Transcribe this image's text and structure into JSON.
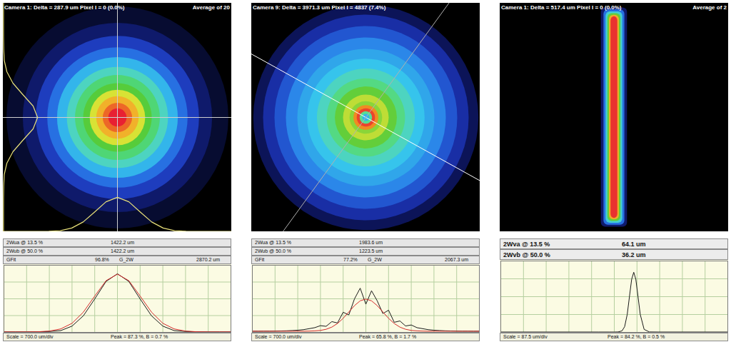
{
  "chart_data": [
    {
      "type": "beam_image",
      "title": "Camera 1: Delta = 287.9 um Pixel I = 0 (0.0%)",
      "subtitle": "Average of 20",
      "xlim": [
        -3500,
        3500
      ],
      "ylim": [
        -3500,
        3500
      ],
      "tick_labels": false,
      "rings": [
        {
          "radius": 3400,
          "level": 1.5
        },
        {
          "radius": 2900,
          "level": 4
        },
        {
          "radius": 2500,
          "level": 9
        },
        {
          "radius": 2150,
          "level": 15
        },
        {
          "radius": 1850,
          "level": 24
        },
        {
          "radius": 1550,
          "level": 33
        },
        {
          "radius": 1300,
          "level": 44
        },
        {
          "radius": 1050,
          "level": 54
        },
        {
          "radius": 850,
          "level": 64
        },
        {
          "radius": 650,
          "level": 74
        },
        {
          "radius": 450,
          "level": 84
        },
        {
          "radius": 280,
          "level": 92
        }
      ],
      "profile_x": [
        -3500,
        -3150,
        -2800,
        -2450,
        -2100,
        -1750,
        -1400,
        -1050,
        -700,
        -350,
        0,
        350,
        700,
        1050,
        1400,
        1750,
        2100,
        2450,
        2800,
        3150,
        3500
      ],
      "x_profile": [
        0.7,
        0.7,
        0.7,
        0.8,
        1.3,
        2.6,
        9.3,
        24.7,
        49.8,
        75.9,
        87.3,
        75.9,
        49.8,
        24.7,
        9.3,
        2.6,
        1.3,
        0.8,
        0.7,
        0.7,
        0.7
      ],
      "y_profile": [
        0.7,
        0.7,
        0.7,
        0.8,
        1.3,
        2.6,
        9.3,
        24.7,
        49.8,
        75.9,
        87.3,
        75.9,
        49.8,
        24.7,
        9.3,
        2.6,
        1.3,
        0.8,
        0.7,
        0.7,
        0.7
      ]
    },
    {
      "type": "line",
      "header": [
        [
          "2Wua @ 13.5 %",
          "1422.2 um"
        ],
        [
          "2Wub @ 50.0 %",
          "1422.2 um"
        ],
        [
          "GFit",
          "96.8%",
          "G_2W",
          "2870.2 um"
        ]
      ],
      "footer": [
        "Scale = 700.0 um/div",
        "Peak = 87.3 %, B = 0.7 %"
      ],
      "x": [
        -3500,
        -3150,
        -2800,
        -2450,
        -2100,
        -1750,
        -1400,
        -1050,
        -700,
        -350,
        0,
        350,
        700,
        1050,
        1400,
        1750,
        2100,
        2450,
        2800,
        3150,
        3500
      ],
      "series": [
        {
          "color": "#1a1a1a",
          "values": [
            0.7,
            0.7,
            0.7,
            0.8,
            1.3,
            2.6,
            9.3,
            24.7,
            49.8,
            75.9,
            87.3,
            75.9,
            49.8,
            24.7,
            9.3,
            2.6,
            1.3,
            0.8,
            0.7,
            0.7,
            0.7
          ]
        },
        {
          "color": "#d42a2a",
          "values": [
            0.7,
            0.7,
            0.7,
            0.9,
            1.9,
            5.1,
            13.5,
            30.2,
            54.1,
            77.1,
            86.7,
            77.1,
            54.1,
            30.2,
            13.5,
            5.1,
            1.9,
            0.9,
            0.7,
            0.7,
            0.7
          ]
        }
      ],
      "xlim": [
        -3500,
        3500
      ],
      "xticks": [
        -3500,
        -2800,
        -2100,
        -1400,
        -700,
        0,
        700,
        1400,
        2100,
        2800,
        3500
      ],
      "ylim": [
        0,
        100
      ],
      "yticks": [
        0,
        25,
        50,
        75,
        100
      ],
      "grid": true,
      "tick_labels": false
    },
    {
      "type": "beam_image",
      "title": "Camera 9: Delta = 3971.3 um Pixel I = 4837 (7.4%)",
      "xlim": [
        -3500,
        3500
      ],
      "ylim": [
        -3500,
        3500
      ],
      "tick_labels": false,
      "rings": [
        {
          "radius": 3450,
          "level": 3
        },
        {
          "radius": 3150,
          "level": 7
        },
        {
          "radius": 2800,
          "level": 12
        },
        {
          "radius": 2450,
          "level": 18
        },
        {
          "radius": 2100,
          "level": 22
        },
        {
          "radius": 1800,
          "level": 26
        },
        {
          "radius": 1500,
          "level": 33
        },
        {
          "radius": 1200,
          "level": 42
        },
        {
          "radius": 950,
          "level": 55
        },
        {
          "radius": 700,
          "level": 62
        },
        {
          "radius": 500,
          "level": 58
        },
        {
          "radius": 380,
          "level": 80
        },
        {
          "radius": 280,
          "level": 88
        },
        {
          "radius": 190,
          "level": 40
        },
        {
          "radius": 110,
          "level": 24
        }
      ]
    },
    {
      "type": "line",
      "header": [
        [
          "2Wua @ 13.5 %",
          "1983.6 um"
        ],
        [
          "2Wub @ 50.0 %",
          "1223.5 um"
        ],
        [
          "GFit",
          "77.2%",
          "G_2W",
          "2067.3 um"
        ]
      ],
      "footer": [
        "Scale = 700.0 um/div",
        "Peak = 65.8 %, B = 1.7 %"
      ],
      "x": [
        -3500,
        -3325,
        -3150,
        -2975,
        -2800,
        -2625,
        -2450,
        -2275,
        -2100,
        -1925,
        -1750,
        -1575,
        -1400,
        -1225,
        -1050,
        -875,
        -700,
        -525,
        -350,
        -175,
        0,
        175,
        350,
        525,
        700,
        875,
        1050,
        1225,
        1400,
        1575,
        1750,
        1925,
        2100,
        2275,
        2450,
        2625,
        2800,
        2975,
        3150,
        3325,
        3500
      ],
      "series": [
        {
          "color": "#1a1a1a",
          "values": [
            1.7,
            1.7,
            1.8,
            1.8,
            1.9,
            2.1,
            2.3,
            2.7,
            3.2,
            4.0,
            5.5,
            7,
            10,
            9,
            16,
            14,
            30,
            26,
            50,
            65.8,
            42,
            62,
            47,
            28,
            33,
            15,
            17,
            9.5,
            11,
            7,
            5.5,
            4,
            3.2,
            2.7,
            2.3,
            2.1,
            1.9,
            1.8,
            1.8,
            1.7,
            1.7
          ]
        },
        {
          "color": "#d42a2a",
          "values": [
            1.7,
            1.7,
            1.7,
            1.7,
            1.7,
            1.7,
            1.7,
            1.7,
            1.7,
            1.7,
            1.9,
            2.2,
            2.9,
            4.6,
            7.8,
            13.2,
            20.9,
            30.4,
            39.9,
            47.0,
            49.7,
            47.0,
            39.9,
            30.4,
            20.9,
            13.2,
            7.8,
            4.6,
            2.9,
            2.2,
            1.9,
            1.7,
            1.7,
            1.7,
            1.7,
            1.7,
            1.7,
            1.7,
            1.7,
            1.7,
            1.7
          ]
        }
      ],
      "xlim": [
        -3500,
        3500
      ],
      "xticks": [
        -3500,
        -2800,
        -2100,
        -1400,
        -700,
        0,
        700,
        1400,
        2100,
        2800,
        3500
      ],
      "ylim": [
        0,
        100
      ],
      "yticks": [
        0,
        25,
        50,
        75,
        100
      ],
      "grid": true,
      "tick_labels": false
    },
    {
      "type": "beam_image",
      "title": "Camera 1: Delta = 517.4 um Pixel I = 0 (0.0%)",
      "subtitle": "Average of 2",
      "xlim": [
        -437.5,
        437.5
      ],
      "ylim": [
        -437.5,
        437.5
      ],
      "tick_labels": false,
      "rings": [
        {
          "half_width": 50,
          "half_height": 420,
          "level": 4
        },
        {
          "half_width": 40,
          "half_height": 412,
          "level": 15
        },
        {
          "half_width": 32,
          "half_height": 405,
          "level": 30
        },
        {
          "half_width": 25,
          "half_height": 398,
          "level": 55
        },
        {
          "half_width": 19,
          "half_height": 392,
          "level": 75
        },
        {
          "half_width": 13,
          "half_height": 386,
          "level": 90
        }
      ]
    },
    {
      "type": "line",
      "header": [
        [
          "2Wva @ 13.5 %",
          "64.1 um"
        ],
        [
          "2Wvb @ 50.0 %",
          "36.2 um"
        ]
      ],
      "footer": [
        "Scale = 87.5 um/div",
        "Peak = 84.2 %, B = 0.5 %"
      ],
      "x": [
        -437.5,
        -60,
        -20,
        0,
        15,
        30,
        40,
        50,
        60,
        67,
        75,
        83,
        90,
        100,
        115,
        135,
        170,
        437.5
      ],
      "series": [
        {
          "color": "#1a1a1a",
          "values": [
            0.5,
            0.5,
            0.5,
            0.5,
            0.6,
            2.1,
            8.1,
            25.3,
            54.5,
            74.4,
            84.2,
            74.4,
            54.5,
            25.3,
            4.2,
            0.6,
            0.5,
            0.5
          ]
        }
      ],
      "xlim": [
        -437.5,
        437.5
      ],
      "xticks": [
        -437.5,
        -350,
        -262.5,
        -175,
        -87.5,
        0,
        87.5,
        175,
        262.5,
        350,
        437.5
      ],
      "ylim": [
        0,
        100
      ],
      "yticks": [
        0,
        25,
        50,
        75,
        100
      ],
      "grid": true,
      "tick_labels": false
    }
  ]
}
